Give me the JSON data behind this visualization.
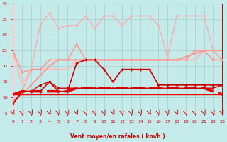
{
  "xlabel": "Vent moyen/en rafales ( km/h )",
  "xlim": [
    0,
    23
  ],
  "ylim": [
    5,
    40
  ],
  "yticks": [
    5,
    10,
    15,
    20,
    25,
    30,
    35,
    40
  ],
  "xticks": [
    0,
    1,
    2,
    3,
    4,
    5,
    6,
    7,
    8,
    9,
    10,
    11,
    12,
    13,
    14,
    15,
    16,
    17,
    18,
    19,
    20,
    21,
    22,
    23
  ],
  "bg_color": "#c5eaea",
  "grid_color": "#aacccc",
  "lines": [
    {
      "x": [
        0,
        1,
        2,
        3,
        4,
        5,
        6,
        7,
        8,
        9,
        10,
        11,
        12,
        13,
        14,
        15,
        16,
        17,
        18,
        19,
        20,
        21,
        22,
        23
      ],
      "y": [
        25,
        14,
        19,
        19,
        19,
        19,
        19,
        22,
        22,
        22,
        22,
        22,
        22,
        22,
        22,
        22,
        22,
        22,
        22,
        22,
        22,
        25,
        25,
        22
      ],
      "color": "#ffbbbb",
      "lw": 1.5,
      "marker": null,
      "ms": 0,
      "zorder": 2
    },
    {
      "x": [
        0,
        1,
        2,
        3,
        4,
        5,
        6,
        7,
        8,
        9,
        10,
        11,
        12,
        13,
        14,
        15,
        16,
        17,
        18,
        19,
        20,
        21,
        22,
        23
      ],
      "y": [
        8,
        12,
        19,
        33,
        37,
        32,
        33,
        33,
        36,
        32,
        36,
        36,
        33,
        36,
        36,
        36,
        33,
        23,
        36,
        36,
        36,
        36,
        25,
        22
      ],
      "color": "#ffaaaa",
      "lw": 1.0,
      "marker": ".",
      "ms": 2.5,
      "zorder": 2
    },
    {
      "x": [
        0,
        1,
        2,
        3,
        4,
        5,
        6,
        7,
        8,
        9,
        10,
        11,
        12,
        13,
        14,
        15,
        16,
        17,
        18,
        19,
        20,
        21,
        22,
        23
      ],
      "y": [
        25,
        18,
        19,
        19,
        22,
        22,
        22,
        27,
        22,
        22,
        22,
        22,
        22,
        22,
        22,
        22,
        22,
        22,
        22,
        22,
        25,
        25,
        22,
        22
      ],
      "color": "#ff9999",
      "lw": 1.2,
      "marker": ".",
      "ms": 2.5,
      "zorder": 3
    },
    {
      "x": [
        0,
        1,
        2,
        3,
        4,
        5,
        6,
        7,
        8,
        9,
        10,
        11,
        12,
        13,
        14,
        15,
        16,
        17,
        18,
        19,
        20,
        21,
        22,
        23
      ],
      "y": [
        9,
        11,
        14,
        17,
        20,
        22,
        22,
        22,
        22,
        22,
        22,
        22,
        22,
        22,
        22,
        22,
        22,
        22,
        22,
        23,
        24,
        25,
        25,
        25
      ],
      "color": "#ff9999",
      "lw": 1.5,
      "marker": null,
      "ms": 0,
      "zorder": 2
    },
    {
      "x": [
        0,
        1,
        2,
        3,
        4,
        5,
        6,
        7,
        8,
        9,
        10,
        11,
        12,
        13,
        14,
        15,
        16,
        17,
        18,
        19,
        20,
        21,
        22,
        23
      ],
      "y": [
        11,
        12,
        12,
        12,
        12,
        12,
        12,
        13,
        13,
        13,
        13,
        13,
        13,
        13,
        13,
        13,
        13,
        13,
        13,
        13,
        13,
        13,
        12,
        11
      ],
      "color": "#ee0000",
      "lw": 2.5,
      "marker": null,
      "ms": 0,
      "zorder": 4,
      "dashes": [
        5,
        2
      ]
    },
    {
      "x": [
        0,
        1,
        2,
        3,
        4,
        5,
        6,
        7,
        8,
        9,
        10,
        11,
        12,
        13,
        14,
        15,
        16,
        17,
        18,
        19,
        20,
        21,
        22,
        23
      ],
      "y": [
        11,
        11,
        11,
        11,
        11,
        11,
        11,
        11,
        11,
        11,
        11,
        11,
        11,
        11,
        11,
        11,
        11,
        11,
        11,
        11,
        11,
        11,
        11,
        11
      ],
      "color": "#ee0000",
      "lw": 1.0,
      "marker": null,
      "ms": 0,
      "zorder": 3
    },
    {
      "x": [
        0,
        1,
        2,
        3,
        4,
        5,
        6,
        7,
        8,
        9,
        10,
        11,
        12,
        13,
        14,
        15,
        16,
        17,
        18,
        19,
        20,
        21,
        22,
        23
      ],
      "y": [
        8,
        12,
        12,
        12,
        15,
        12,
        12,
        21,
        22,
        22,
        19,
        15,
        19,
        19,
        19,
        19,
        14,
        14,
        14,
        14,
        14,
        14,
        14,
        14
      ],
      "color": "#cc0000",
      "lw": 1.2,
      "marker": "+",
      "ms": 3.5,
      "zorder": 5
    },
    {
      "x": [
        0,
        1,
        2,
        3,
        4,
        5,
        6,
        7,
        8,
        9,
        10,
        11,
        12,
        13,
        14,
        15,
        16,
        17,
        18,
        19,
        20,
        21,
        22,
        23
      ],
      "y": [
        8,
        12,
        12,
        14,
        15,
        13,
        13,
        13,
        13,
        13,
        13,
        13,
        13,
        13,
        13,
        13,
        13,
        13,
        13,
        13,
        13,
        13,
        13,
        14
      ],
      "color": "#cc0000",
      "lw": 1.0,
      "marker": ".",
      "ms": 2.5,
      "zorder": 5
    }
  ],
  "arrow_color": "#cc0000"
}
